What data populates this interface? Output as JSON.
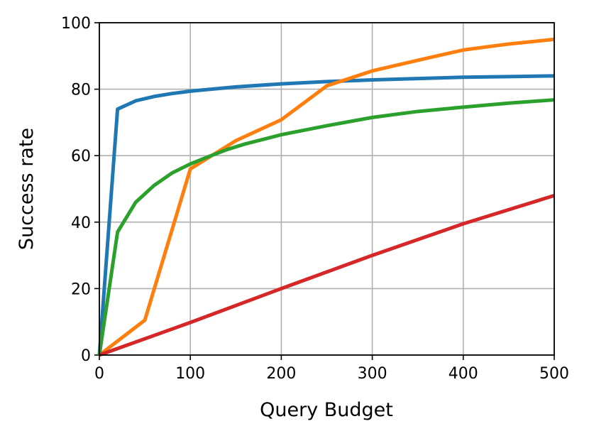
{
  "chart_data": {
    "type": "line",
    "x_label": "Query Budget",
    "y_label": "Success rate",
    "xlim": [
      0,
      500
    ],
    "xticks": [
      0,
      100,
      200,
      300,
      400,
      500
    ],
    "ylim": [
      0,
      100
    ],
    "yticks": [
      0,
      20,
      40,
      60,
      80,
      100
    ],
    "grid": true,
    "series": [
      {
        "color": "#1f77b4",
        "x": [
          0,
          20,
          40,
          60,
          80,
          100,
          150,
          200,
          250,
          300,
          350,
          400,
          450,
          500
        ],
        "values": [
          0,
          74,
          76.5,
          77.8,
          78.7,
          79.4,
          80.7,
          81.6,
          82.3,
          82.8,
          83.2,
          83.6,
          83.8,
          84
        ]
      },
      {
        "color": "#ff7f0e",
        "x": [
          0,
          50,
          100,
          150,
          200,
          250,
          300,
          350,
          400,
          450,
          500
        ],
        "values": [
          0,
          10.5,
          56,
          64.5,
          70.8,
          81,
          85.5,
          88.7,
          91.8,
          93.6,
          95
        ]
      },
      {
        "color": "#2ca02c",
        "x": [
          0,
          20,
          40,
          60,
          80,
          100,
          120,
          140,
          160,
          200,
          250,
          300,
          350,
          400,
          450,
          500
        ],
        "values": [
          0,
          37,
          46,
          51,
          54.8,
          57.5,
          59.7,
          61.8,
          63.5,
          66.3,
          69,
          71.5,
          73.3,
          74.6,
          75.8,
          76.8
        ]
      },
      {
        "color": "#d62728",
        "x": [
          0,
          100,
          200,
          300,
          400,
          500
        ],
        "values": [
          0,
          9.8,
          20,
          30,
          39.5,
          48
        ]
      }
    ]
  }
}
